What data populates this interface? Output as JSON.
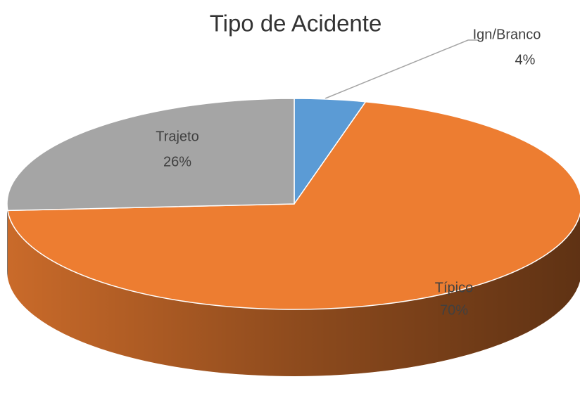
{
  "chart_data": {
    "type": "pie",
    "title": "Tipo de Acidente",
    "categories": [
      "Ign/Branco",
      "Típico",
      "Trajeto"
    ],
    "values": [
      4,
      70,
      26
    ],
    "value_labels": [
      "4%",
      "70%",
      "26%"
    ],
    "colors": [
      "#5b9bd5",
      "#ed7d31",
      "#a5a5a5"
    ]
  }
}
